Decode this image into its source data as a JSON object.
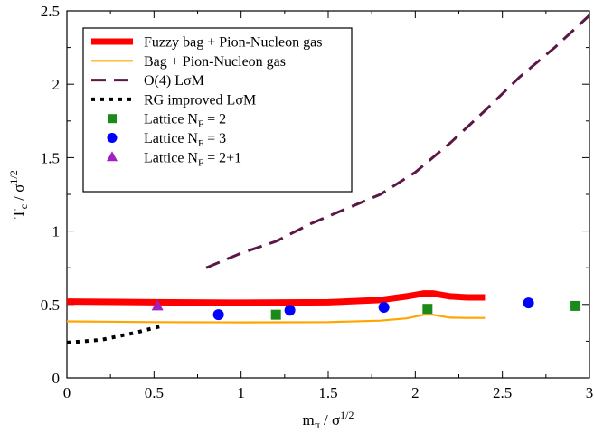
{
  "chart_data": {
    "type": "line",
    "xlabel": "m",
    "xlabel_sub": "π",
    "xlabel_tail": " / σ",
    "xlabel_sup": "1/2",
    "ylabel": "T",
    "ylabel_sub": "c",
    "ylabel_tail": " / σ",
    "ylabel_sup": "1/2",
    "xlim": [
      0,
      3
    ],
    "ylim": [
      0,
      2.5
    ],
    "xticks": [
      0,
      0.5,
      1,
      1.5,
      2,
      2.5,
      3
    ],
    "xtick_labels": [
      "0",
      "0.5",
      "1",
      "1.5",
      "2",
      "2.5",
      "3"
    ],
    "yticks": [
      0,
      0.5,
      1,
      1.5,
      2,
      2.5
    ],
    "ytick_labels": [
      "0",
      "0.5",
      "1",
      "1.5",
      "2",
      "2.5"
    ],
    "grid": false,
    "legend_position": "top-left",
    "series": [
      {
        "name": "Fuzzy bag + Pion-Nucleon gas",
        "kind": "line",
        "color": "#ff0000",
        "style": "solid-thick",
        "points": [
          [
            0,
            0.52
          ],
          [
            0.5,
            0.515
          ],
          [
            1.0,
            0.512
          ],
          [
            1.5,
            0.515
          ],
          [
            1.8,
            0.53
          ],
          [
            1.95,
            0.555
          ],
          [
            2.05,
            0.575
          ],
          [
            2.1,
            0.575
          ],
          [
            2.2,
            0.555
          ],
          [
            2.3,
            0.548
          ],
          [
            2.4,
            0.548
          ]
        ]
      },
      {
        "name": "Bag + Pion-Nucleon gas",
        "kind": "line",
        "color": "#ffa500",
        "style": "solid",
        "points": [
          [
            0,
            0.385
          ],
          [
            0.5,
            0.38
          ],
          [
            1.0,
            0.378
          ],
          [
            1.5,
            0.38
          ],
          [
            1.8,
            0.39
          ],
          [
            1.95,
            0.405
          ],
          [
            2.05,
            0.43
          ],
          [
            2.1,
            0.43
          ],
          [
            2.2,
            0.41
          ],
          [
            2.3,
            0.408
          ],
          [
            2.4,
            0.408
          ]
        ]
      },
      {
        "name": "O(4) LσM",
        "kind": "line",
        "color": "#5c1845",
        "style": "dashed",
        "points": [
          [
            0.8,
            0.75
          ],
          [
            1.0,
            0.85
          ],
          [
            1.2,
            0.93
          ],
          [
            1.4,
            1.05
          ],
          [
            1.6,
            1.15
          ],
          [
            1.8,
            1.25
          ],
          [
            2.0,
            1.4
          ],
          [
            2.2,
            1.6
          ],
          [
            2.4,
            1.82
          ],
          [
            2.6,
            2.05
          ],
          [
            2.8,
            2.25
          ],
          [
            3.0,
            2.47
          ]
        ]
      },
      {
        "name": "RG improved LσM",
        "kind": "line",
        "color": "#000000",
        "style": "dotted",
        "points": [
          [
            0,
            0.24
          ],
          [
            0.2,
            0.26
          ],
          [
            0.4,
            0.31
          ],
          [
            0.55,
            0.355
          ]
        ]
      },
      {
        "name": "Lattice N",
        "name_sub": "F",
        "name_tail": " = 2",
        "kind": "marker",
        "marker": "square",
        "color": "#1a8a1a",
        "points": [
          [
            1.2,
            0.43
          ],
          [
            2.07,
            0.47
          ],
          [
            2.92,
            0.49
          ]
        ]
      },
      {
        "name": "Lattice N",
        "name_sub": "F",
        "name_tail": " = 3",
        "kind": "marker",
        "marker": "circle",
        "color": "#0000ff",
        "points": [
          [
            0.87,
            0.43
          ],
          [
            1.28,
            0.46
          ],
          [
            1.82,
            0.48
          ],
          [
            2.65,
            0.51
          ]
        ]
      },
      {
        "name": "Lattice N",
        "name_sub": "F",
        "name_tail": " = 2+1",
        "kind": "marker",
        "marker": "triangle",
        "color": "#a020c0",
        "points": [
          [
            0.52,
            0.49
          ]
        ]
      }
    ]
  }
}
